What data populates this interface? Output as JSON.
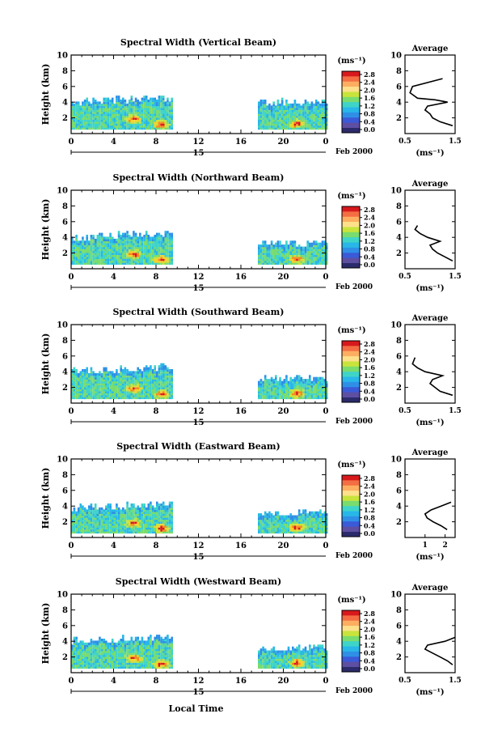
{
  "figure": {
    "xlabel": "Local Time",
    "date_label": "Feb 2000",
    "day_label": "15",
    "colorbar_unit": "(ms⁻¹)",
    "colorbar_ticks": [
      "2.8",
      "2.4",
      "2.0",
      "1.6",
      "1.2",
      "0.8",
      "0.4",
      "0.0"
    ],
    "colorbar_colors": [
      "#d7191c",
      "#f46d43",
      "#fdae61",
      "#fee08b",
      "#a6d96a",
      "#66c2a5",
      "#3288bd",
      "#5e4fa2",
      "#2b2b6b"
    ]
  },
  "chart_data": [
    {
      "type": "heatmap",
      "title": "Spectral Width (Vertical Beam)",
      "ylabel": "Height (km)",
      "xlim": [
        0,
        24
      ],
      "ylim": [
        0,
        10
      ],
      "xticks": [
        "0",
        "4",
        "8",
        "12",
        "16",
        "20",
        "0"
      ],
      "yticks": [
        "2",
        "4",
        "6",
        "8",
        "10"
      ],
      "data_segments": [
        [
          0,
          9.5
        ],
        [
          17.6,
          24
        ]
      ],
      "cloud_top_km": [
        3.8,
        3.8
      ],
      "hot_spots": [
        {
          "x": 5.8,
          "y": 1.7
        },
        {
          "x": 8.4,
          "y": 1.0
        },
        {
          "x": 21.2,
          "y": 1.1
        }
      ],
      "average": {
        "title": "Average",
        "xlabel": "(ms⁻¹)",
        "xlim": [
          0.5,
          1.5
        ],
        "xticks": [
          "0.5",
          "1.5"
        ],
        "heights": [
          1.0,
          1.5,
          2.0,
          2.5,
          3.0,
          3.5,
          4.0,
          4.3,
          4.5,
          5.2,
          6.0,
          7.0
        ],
        "values": [
          1.45,
          1.2,
          1.05,
          1.0,
          0.9,
          0.95,
          1.35,
          1.1,
          0.75,
          0.6,
          0.65,
          1.25
        ]
      }
    },
    {
      "type": "heatmap",
      "title": "Spectral Width (Northward Beam)",
      "ylabel": "Height (km)",
      "xlim": [
        0,
        24
      ],
      "ylim": [
        0,
        10
      ],
      "xticks": [
        "0",
        "4",
        "8",
        "12",
        "16",
        "20",
        "0"
      ],
      "yticks": [
        "2",
        "4",
        "6",
        "8",
        "10"
      ],
      "data_segments": [
        [
          0,
          9.5
        ],
        [
          17.6,
          24
        ]
      ],
      "cloud_top_km": [
        3.8,
        3.0
      ],
      "hot_spots": [
        {
          "x": 5.8,
          "y": 1.7
        },
        {
          "x": 8.4,
          "y": 1.0
        },
        {
          "x": 21.2,
          "y": 1.1
        }
      ],
      "average": {
        "title": "Average",
        "xlabel": "(ms⁻¹)",
        "xlim": [
          0.5,
          1.5
        ],
        "xticks": [
          "0.5",
          "1.5"
        ],
        "heights": [
          1.0,
          1.5,
          2.0,
          2.5,
          3.0,
          3.5,
          4.0,
          4.5,
          5.0,
          5.5
        ],
        "values": [
          1.45,
          1.3,
          1.15,
          1.05,
          1.0,
          1.2,
          0.95,
          0.8,
          0.7,
          0.75
        ]
      }
    },
    {
      "type": "heatmap",
      "title": "Spectral Width (Southward Beam)",
      "ylabel": "Height (km)",
      "xlim": [
        0,
        24
      ],
      "ylim": [
        0,
        10
      ],
      "xticks": [
        "0",
        "4",
        "8",
        "12",
        "16",
        "20",
        "0"
      ],
      "yticks": [
        "2",
        "4",
        "6",
        "8",
        "10"
      ],
      "data_segments": [
        [
          0,
          9.5
        ],
        [
          17.6,
          24
        ]
      ],
      "cloud_top_km": [
        3.8,
        3.0
      ],
      "hot_spots": [
        {
          "x": 5.8,
          "y": 1.7
        },
        {
          "x": 8.4,
          "y": 1.0
        },
        {
          "x": 21.2,
          "y": 1.1
        }
      ],
      "average": {
        "title": "Average",
        "xlabel": "(ms⁻¹)",
        "xlim": [
          0.5,
          1.5
        ],
        "xticks": [
          "0.5",
          "1.5"
        ],
        "heights": [
          1.0,
          1.5,
          2.0,
          2.5,
          3.0,
          3.5,
          4.0,
          4.5,
          5.0,
          5.8
        ],
        "values": [
          1.45,
          1.2,
          1.1,
          1.0,
          1.05,
          1.25,
          0.9,
          0.75,
          0.65,
          0.7
        ]
      }
    },
    {
      "type": "heatmap",
      "title": "Spectral Width (Eastward Beam)",
      "ylabel": "Height (km)",
      "xlim": [
        0,
        24
      ],
      "ylim": [
        0,
        10
      ],
      "xticks": [
        "0",
        "4",
        "8",
        "12",
        "16",
        "20",
        "0"
      ],
      "yticks": [
        "2",
        "4",
        "6",
        "8",
        "10"
      ],
      "data_segments": [
        [
          0,
          9.5
        ],
        [
          17.6,
          24
        ]
      ],
      "cloud_top_km": [
        3.6,
        3.0
      ],
      "hot_spots": [
        {
          "x": 5.8,
          "y": 1.7
        },
        {
          "x": 8.4,
          "y": 1.0
        },
        {
          "x": 21.2,
          "y": 1.1
        }
      ],
      "average": {
        "title": "Average",
        "xlabel": "(ms⁻¹)",
        "xlim": [
          0,
          2.5
        ],
        "xticks": [
          "1",
          "2"
        ],
        "heights": [
          1.0,
          1.5,
          2.0,
          2.5,
          3.0,
          3.5,
          4.0,
          4.5
        ],
        "values": [
          2.1,
          1.8,
          1.4,
          1.1,
          1.0,
          1.3,
          1.8,
          2.3
        ]
      }
    },
    {
      "type": "heatmap",
      "title": "Spectral Width (Westward Beam)",
      "ylabel": "Height (km)",
      "xlim": [
        0,
        24
      ],
      "ylim": [
        0,
        10
      ],
      "xticks": [
        "0",
        "4",
        "8",
        "12",
        "16",
        "20",
        "0"
      ],
      "yticks": [
        "2",
        "4",
        "6",
        "8",
        "10"
      ],
      "data_segments": [
        [
          0,
          9.5
        ],
        [
          17.6,
          24
        ]
      ],
      "cloud_top_km": [
        3.8,
        3.0
      ],
      "hot_spots": [
        {
          "x": 5.8,
          "y": 1.7
        },
        {
          "x": 8.4,
          "y": 1.0
        },
        {
          "x": 21.2,
          "y": 1.1
        }
      ],
      "average": {
        "title": "Average",
        "xlabel": "(ms⁻¹)",
        "xlim": [
          0.5,
          1.5
        ],
        "xticks": [
          "0.5",
          "1.5"
        ],
        "heights": [
          1.0,
          1.5,
          2.0,
          2.5,
          3.0,
          3.5,
          4.0,
          4.5
        ],
        "values": [
          1.45,
          1.35,
          1.2,
          1.05,
          0.9,
          0.95,
          1.3,
          1.5
        ]
      }
    }
  ]
}
